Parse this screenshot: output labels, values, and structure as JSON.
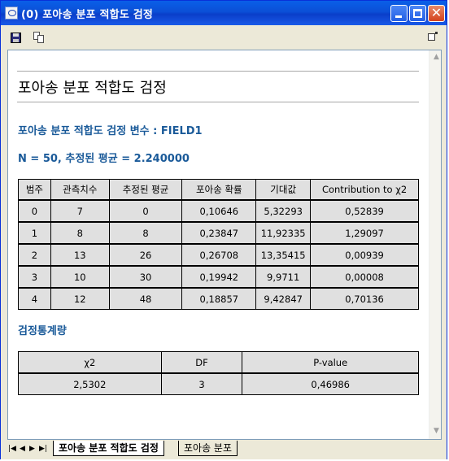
{
  "window": {
    "title": "(0) 포아송 분포 적합도 검정"
  },
  "document": {
    "title": "포아송 분포 적합도 검정",
    "variable_line": "포아송 분포 적합도 검정 변수 : FIELD1",
    "summary_line": "N = 50, 추정된 평균 = 2.240000",
    "table1": {
      "headers": [
        "범주",
        "관측치수",
        "추정된 평균",
        "포아송 확률",
        "기대값",
        "Contribution to χ2"
      ],
      "rows": [
        [
          "0",
          "7",
          "0",
          "0,10646",
          "5,32293",
          "0,52839"
        ],
        [
          "1",
          "8",
          "8",
          "0,23847",
          "11,92335",
          "1,29097"
        ],
        [
          "2",
          "13",
          "26",
          "0,26708",
          "13,35415",
          "0,00939"
        ],
        [
          "3",
          "10",
          "30",
          "0,19942",
          "9,9711",
          "0,00008"
        ],
        [
          "4",
          "12",
          "48",
          "0,18857",
          "9,42847",
          "0,70136"
        ]
      ]
    },
    "stats_heading": "검정통계량",
    "table2": {
      "headers": [
        "χ2",
        "DF",
        "P-value"
      ],
      "row": [
        "2,5302",
        "3",
        "0,46986"
      ]
    }
  },
  "tabs": [
    {
      "label": "포아송 분포 적합도 검정",
      "active": true
    },
    {
      "label": "포아송 분포",
      "active": false
    }
  ],
  "colors": {
    "titlebar": "#0b4fd6",
    "heading_blue": "#1a5a99",
    "table_cell": "#e0e0e0"
  },
  "icons": [
    "save-icon",
    "copy-icon",
    "pane-icon",
    "minimize-icon",
    "maximize-icon",
    "close-icon"
  ]
}
